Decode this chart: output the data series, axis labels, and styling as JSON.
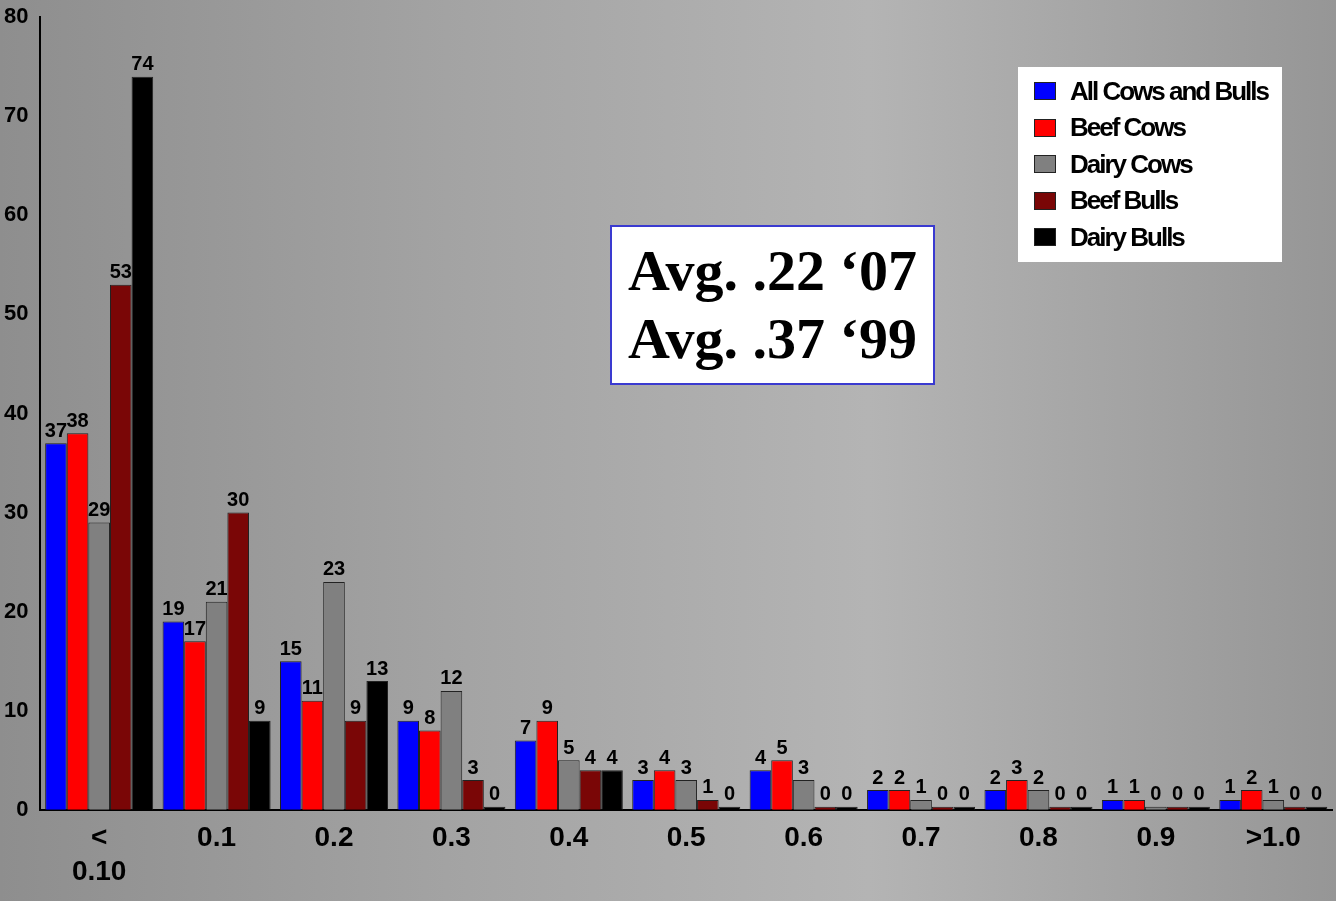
{
  "chart_data": {
    "type": "bar",
    "categories": [
      "< 0.10",
      "0.1",
      "0.2",
      "0.3",
      "0.4",
      "0.5",
      "0.6",
      "0.7",
      "0.8",
      "0.9",
      ">1.0"
    ],
    "series": [
      {
        "name": "All Cows and Bulls",
        "color": "#0000ff",
        "values": [
          37,
          19,
          15,
          9,
          7,
          3,
          4,
          2,
          2,
          1,
          1
        ]
      },
      {
        "name": "Beef Cows",
        "color": "#ff0000",
        "values": [
          38,
          17,
          11,
          8,
          9,
          4,
          5,
          2,
          3,
          1,
          2
        ]
      },
      {
        "name": "Dairy Cows",
        "color": "#808080",
        "values": [
          29,
          21,
          23,
          12,
          5,
          3,
          3,
          1,
          2,
          0,
          1
        ]
      },
      {
        "name": "Beef Bulls",
        "color": "#7a0606",
        "values": [
          53,
          30,
          9,
          3,
          4,
          1,
          0,
          0,
          0,
          0,
          0
        ]
      },
      {
        "name": "Dairy Bulls",
        "color": "#000000",
        "values": [
          74,
          9,
          13,
          0,
          4,
          0,
          0,
          0,
          0,
          0,
          0
        ]
      }
    ],
    "ylim": [
      0,
      80
    ],
    "yticks": [
      0,
      10,
      20,
      30,
      40,
      50,
      60,
      70,
      80
    ],
    "grid": false,
    "legend": "top right",
    "data_labels": true,
    "annotations": [
      "Avg. .22 ‘07",
      "Avg. .37 ‘99"
    ]
  }
}
